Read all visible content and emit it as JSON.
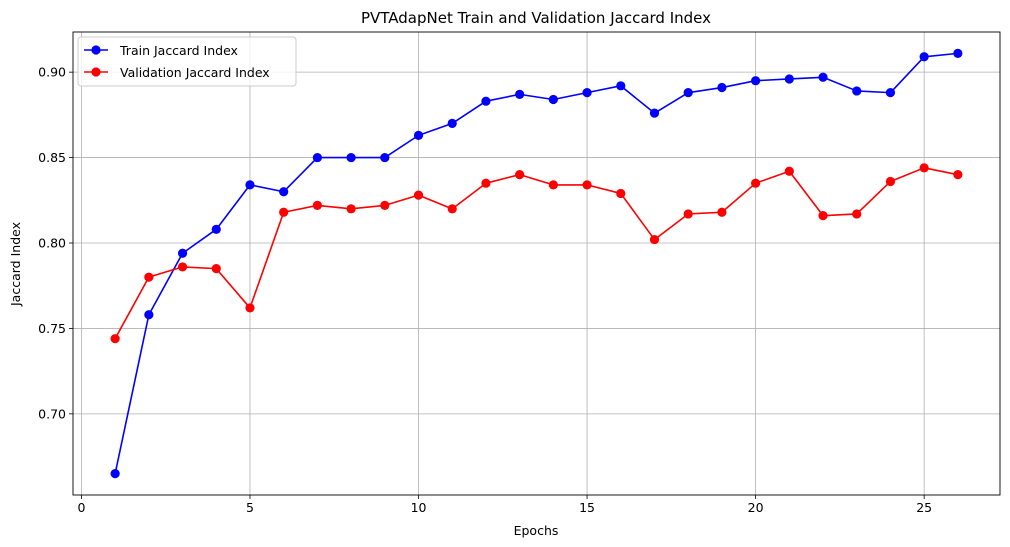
{
  "chart_data": {
    "type": "line",
    "title": "PVTAdapNet Train and Validation Jaccard Index",
    "xlabel": "Epochs",
    "ylabel": "Jaccard Index",
    "xlim": [
      -0.25,
      27.25
    ],
    "ylim": [
      0.6525,
      0.9235
    ],
    "xticks": [
      0,
      5,
      10,
      15,
      20,
      25
    ],
    "yticks": [
      0.7,
      0.75,
      0.8,
      0.85,
      0.9
    ],
    "xtick_labels": [
      "0",
      "5",
      "10",
      "15",
      "20",
      "25"
    ],
    "ytick_labels": [
      "0.70",
      "0.75",
      "0.80",
      "0.85",
      "0.90"
    ],
    "grid": true,
    "legend_position": "top-left",
    "x": [
      1,
      2,
      3,
      4,
      5,
      6,
      7,
      8,
      9,
      10,
      11,
      12,
      13,
      14,
      15,
      16,
      17,
      18,
      19,
      20,
      21,
      22,
      23,
      24,
      25,
      26
    ],
    "series": [
      {
        "name": "Train Jaccard Index",
        "color": "#0000ff",
        "marker": "circle",
        "values": [
          0.665,
          0.758,
          0.794,
          0.808,
          0.834,
          0.83,
          0.85,
          0.85,
          0.85,
          0.863,
          0.87,
          0.883,
          0.887,
          0.884,
          0.888,
          0.892,
          0.876,
          0.888,
          0.891,
          0.895,
          0.896,
          0.897,
          0.889,
          0.888,
          0.909,
          0.911
        ]
      },
      {
        "name": "Validation Jaccard Index",
        "color": "#ff0000",
        "marker": "circle",
        "values": [
          0.744,
          0.78,
          0.786,
          0.785,
          0.762,
          0.818,
          0.822,
          0.82,
          0.822,
          0.828,
          0.82,
          0.835,
          0.84,
          0.834,
          0.834,
          0.829,
          0.802,
          0.817,
          0.818,
          0.835,
          0.842,
          0.816,
          0.817,
          0.836,
          0.844,
          0.84
        ]
      }
    ]
  }
}
